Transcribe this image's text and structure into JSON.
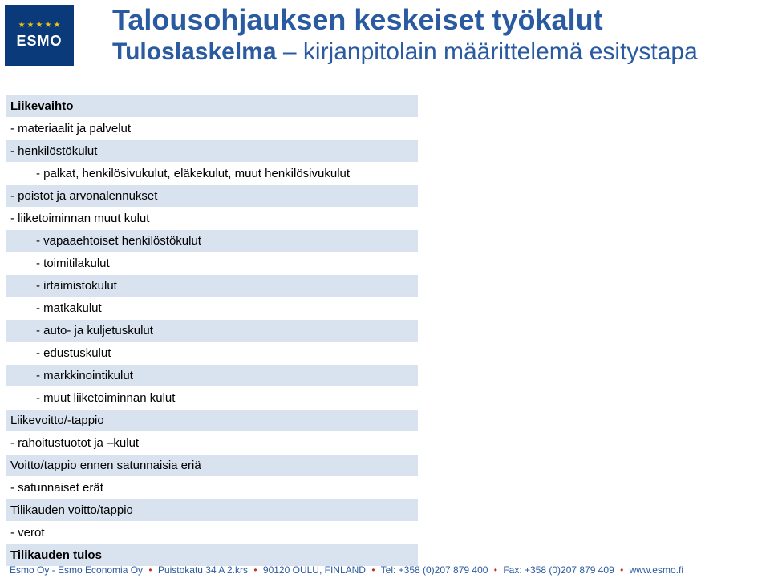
{
  "logo": {
    "text": "ESMO"
  },
  "title": "Talousohjauksen keskeiset työkalut",
  "subtitle_bold": "Tuloslaskelma",
  "subtitle_rest": " – kirjanpitolain määrittelemä esitystapa",
  "rows": [
    {
      "text": "Liikevaihto",
      "bg": "alt",
      "indent": 1,
      "bold": true
    },
    {
      "text": "- materiaalit ja palvelut",
      "bg": "w",
      "indent": 1,
      "bold": false
    },
    {
      "text": "- henkilöstökulut",
      "bg": "alt",
      "indent": 1,
      "bold": false
    },
    {
      "text": "- palkat, henkilösivukulut, eläkekulut, muut henkilösivukulut",
      "bg": "w",
      "indent": 2,
      "bold": false
    },
    {
      "text": "- poistot ja arvonalennukset",
      "bg": "alt",
      "indent": 1,
      "bold": false
    },
    {
      "text": "- liiketoiminnan muut kulut",
      "bg": "w",
      "indent": 1,
      "bold": false
    },
    {
      "text": "- vapaaehtoiset henkilöstökulut",
      "bg": "alt",
      "indent": 2,
      "bold": false
    },
    {
      "text": "- toimitilakulut",
      "bg": "w",
      "indent": 2,
      "bold": false
    },
    {
      "text": "- irtaimistokulut",
      "bg": "alt",
      "indent": 2,
      "bold": false
    },
    {
      "text": "- matkakulut",
      "bg": "w",
      "indent": 2,
      "bold": false
    },
    {
      "text": "- auto- ja kuljetuskulut",
      "bg": "alt",
      "indent": 2,
      "bold": false
    },
    {
      "text": "- edustuskulut",
      "bg": "w",
      "indent": 2,
      "bold": false
    },
    {
      "text": "- markkinointikulut",
      "bg": "alt",
      "indent": 2,
      "bold": false
    },
    {
      "text": "- muut liiketoiminnan kulut",
      "bg": "w",
      "indent": 2,
      "bold": false
    },
    {
      "text": "Liikevoitto/-tappio",
      "bg": "alt",
      "indent": 1,
      "bold": false
    },
    {
      "text": "- rahoitustuotot ja –kulut",
      "bg": "w",
      "indent": 1,
      "bold": false
    },
    {
      "text": "Voitto/tappio ennen satunnaisia eriä",
      "bg": "alt",
      "indent": 1,
      "bold": false
    },
    {
      "text": "- satunnaiset erät",
      "bg": "w",
      "indent": 1,
      "bold": false
    },
    {
      "text": "Tilikauden voitto/tappio",
      "bg": "alt",
      "indent": 1,
      "bold": false
    },
    {
      "text": "- verot",
      "bg": "w",
      "indent": 1,
      "bold": false
    },
    {
      "text": "Tilikauden tulos",
      "bg": "alt",
      "indent": 1,
      "bold": true
    }
  ],
  "footer": {
    "p1": "Esmo Oy - Esmo Economia Oy",
    "p2": "Puistokatu 34 A 2.krs",
    "p3": "90120 OULU, FINLAND",
    "p4": "Tel: +358 (0)207 879 400",
    "p5": "Fax: +358 (0)207 879 409",
    "p6": "www.esmo.fi"
  },
  "colors": {
    "brand_bg": "#0a3a7a",
    "title_color": "#2a5aa0",
    "row_alt": "#d9e2ef",
    "row_white": "#ffffff",
    "footer_sep": "#c0332b",
    "star": "#f1c40f"
  }
}
